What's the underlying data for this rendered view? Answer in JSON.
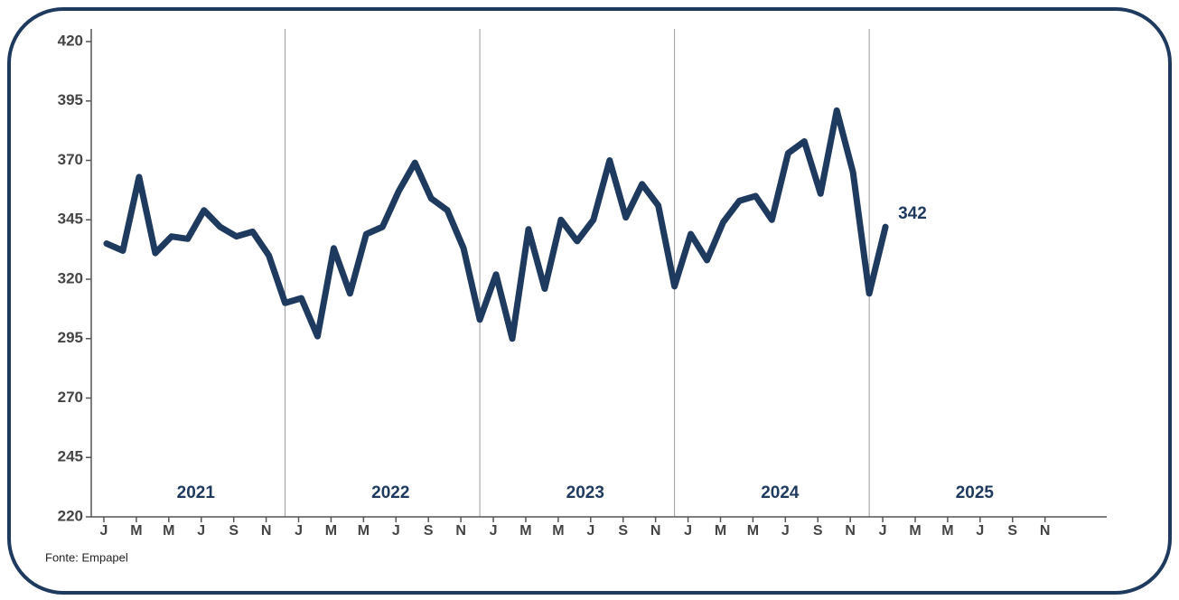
{
  "chart_data": {
    "type": "line",
    "categories": [
      "J",
      null,
      "M",
      null,
      "M",
      null,
      "J",
      null,
      "S",
      null,
      "N",
      null,
      "J",
      null,
      "M",
      null,
      "M",
      null,
      "J",
      null,
      "S",
      null,
      "N",
      null,
      "J",
      null,
      "M",
      null,
      "M",
      null,
      "J",
      null,
      "S",
      null,
      "N",
      null,
      "J",
      null,
      "M",
      null,
      "M",
      null,
      "J",
      null,
      "S",
      null,
      "N",
      null,
      "J",
      null,
      "M",
      null,
      "M",
      null,
      "J",
      null,
      "S",
      null,
      "N",
      null
    ],
    "year_labels": [
      "2021",
      "2022",
      "2023",
      "2024",
      "2025"
    ],
    "values": [
      335,
      332,
      363,
      331,
      338,
      337,
      349,
      342,
      338,
      340,
      330,
      310,
      312,
      296,
      333,
      314,
      339,
      342,
      357,
      369,
      354,
      349,
      333,
      303,
      322,
      295,
      341,
      316,
      345,
      336,
      345,
      370,
      346,
      360,
      351,
      317,
      339,
      328,
      344,
      353,
      355,
      345,
      373,
      378,
      356,
      391,
      365,
      314,
      342,
      null,
      null,
      null,
      null,
      null,
      null,
      null,
      null,
      null,
      null,
      null
    ],
    "color": "#1f3a5f",
    "ylim": [
      220,
      420
    ],
    "yticks": [
      220,
      245,
      270,
      295,
      320,
      345,
      370,
      395,
      420
    ],
    "source": "Fonte: Empapel"
  }
}
